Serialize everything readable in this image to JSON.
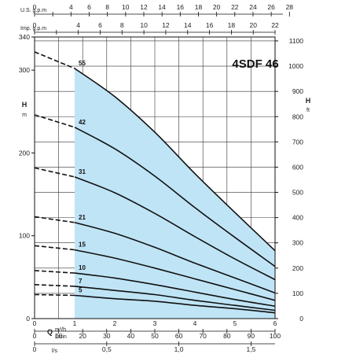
{
  "chart_data": {
    "type": "line",
    "title": "4SDF 46",
    "x_primary": {
      "label": "Q",
      "unit_top": "m³/h",
      "unit_bottom": "l/min",
      "range": [
        0,
        6
      ],
      "ticks": [
        0,
        1,
        2,
        3,
        4,
        5,
        6
      ],
      "lpm_ticks": [
        0,
        10,
        20,
        30,
        40,
        50,
        60,
        70,
        80,
        90,
        100
      ]
    },
    "x_ls": {
      "label": "l/s",
      "ticks": [
        "0",
        "0,5",
        "1,0",
        "1,5"
      ],
      "tick_values": [
        0,
        0.5,
        1.0,
        1.5
      ]
    },
    "x_usgpm": {
      "label": "U.S. g.p.m",
      "ticks": [
        0,
        2,
        4,
        6,
        8,
        10,
        12,
        14,
        16,
        18,
        20,
        22,
        24,
        26,
        28
      ]
    },
    "x_impgpm": {
      "label": "Imp. g.p.m",
      "ticks": [
        0,
        2,
        4,
        6,
        8,
        10,
        12,
        14,
        16,
        18,
        20,
        22
      ]
    },
    "y_left": {
      "label": "H",
      "unit": "m",
      "range": [
        0,
        340
      ],
      "ticks": [
        0,
        100,
        200,
        300,
        340
      ]
    },
    "y_right": {
      "label": "H",
      "unit": "ft",
      "ticks": [
        0,
        100,
        200,
        300,
        400,
        500,
        600,
        700,
        800,
        900,
        1000,
        1100
      ]
    },
    "operating_range": [
      1,
      6
    ],
    "shade_color": "#bfe4f6",
    "curve_color": "#111111",
    "series": [
      {
        "name": "55",
        "values": [
          [
            0,
            322
          ],
          [
            1,
            302
          ],
          [
            2,
            268
          ],
          [
            3,
            225
          ],
          [
            4,
            175
          ],
          [
            5,
            128
          ],
          [
            6,
            82
          ]
        ]
      },
      {
        "name": "42",
        "values": [
          [
            0,
            246
          ],
          [
            1,
            231
          ],
          [
            2,
            205
          ],
          [
            3,
            172
          ],
          [
            4,
            134
          ],
          [
            5,
            98
          ],
          [
            6,
            63
          ]
        ]
      },
      {
        "name": "31",
        "values": [
          [
            0,
            182
          ],
          [
            1,
            171
          ],
          [
            2,
            152
          ],
          [
            3,
            127
          ],
          [
            4,
            99
          ],
          [
            5,
            72
          ],
          [
            6,
            47
          ]
        ]
      },
      {
        "name": "21",
        "values": [
          [
            0,
            123
          ],
          [
            1,
            116
          ],
          [
            2,
            103
          ],
          [
            3,
            86
          ],
          [
            4,
            67
          ],
          [
            5,
            49
          ],
          [
            6,
            31
          ]
        ]
      },
      {
        "name": "15",
        "values": [
          [
            0,
            88
          ],
          [
            1,
            83
          ],
          [
            2,
            73
          ],
          [
            3,
            61
          ],
          [
            4,
            48
          ],
          [
            5,
            35
          ],
          [
            6,
            22
          ]
        ]
      },
      {
        "name": "10",
        "values": [
          [
            0,
            58
          ],
          [
            1,
            55
          ],
          [
            2,
            49
          ],
          [
            3,
            41
          ],
          [
            4,
            32
          ],
          [
            5,
            23
          ],
          [
            6,
            15
          ]
        ]
      },
      {
        "name": "7",
        "values": [
          [
            0,
            41
          ],
          [
            1,
            39
          ],
          [
            2,
            34
          ],
          [
            3,
            29
          ],
          [
            4,
            22
          ],
          [
            5,
            16
          ],
          [
            6,
            10
          ]
        ]
      },
      {
        "name": "5",
        "values": [
          [
            0,
            29
          ],
          [
            1,
            28
          ],
          [
            2,
            24
          ],
          [
            3,
            21
          ],
          [
            4,
            16
          ],
          [
            5,
            12
          ],
          [
            6,
            7
          ]
        ]
      }
    ]
  }
}
